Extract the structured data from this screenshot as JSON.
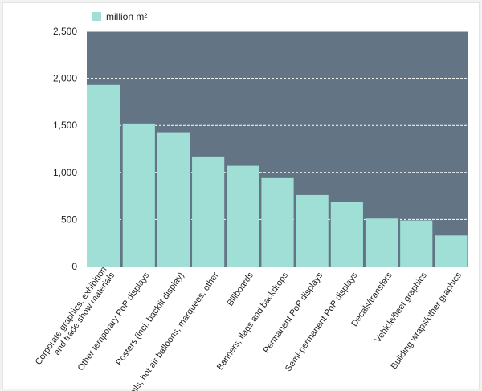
{
  "chart_data": {
    "type": "bar",
    "legend": {
      "label": "million m²",
      "position": "top-left"
    },
    "categories": [
      [
        "Corporate graphics, exhibition",
        "and trade show materials"
      ],
      [
        "Other temporary PoP displays"
      ],
      [
        "Posters (incl. backlit display)"
      ],
      [
        "Sails, hot air balloons, marquees, other"
      ],
      [
        "Billboards"
      ],
      [
        "Banners, flags and backdrops"
      ],
      [
        "Permanent PoP displays"
      ],
      [
        "Semi-permanent PoP displays"
      ],
      [
        "Decals/transfers"
      ],
      [
        "Vehicle/fleet graphics"
      ],
      [
        "Building wraps/other graphics"
      ]
    ],
    "values": [
      1930,
      1520,
      1420,
      1170,
      1070,
      940,
      760,
      690,
      510,
      490,
      330
    ],
    "ylim": [
      0,
      2500
    ],
    "yticks": [
      0,
      500,
      1000,
      1500,
      2000,
      2500
    ],
    "ytick_labels": [
      "0",
      "500",
      "1,000",
      "1,500",
      "2,000",
      "2,500"
    ],
    "grid": true,
    "colors": {
      "plot_bg": "#637585",
      "bar": "#9fdfd5",
      "grid": "#ffffff",
      "text": "#222222"
    }
  }
}
